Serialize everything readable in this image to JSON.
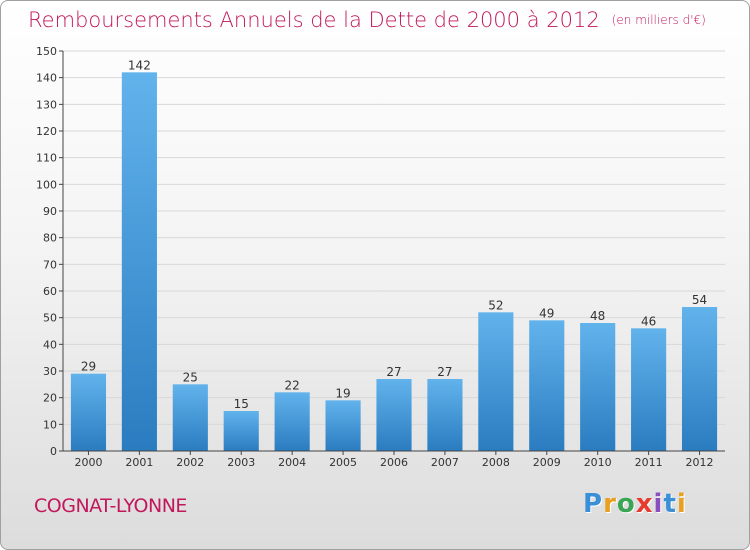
{
  "header": {
    "title": "Remboursements Annuels de la Dette de 2000 à 2012",
    "unit": "(en milliers d'€)"
  },
  "footer": {
    "city": "COGNAT-LYONNE",
    "logo_letters": [
      "P",
      "r",
      "o",
      "x",
      "i",
      "t",
      "i"
    ],
    "logo_colors": [
      "#3a8fd6",
      "#e8a020",
      "#3aa655",
      "#e63b2e",
      "#8a4fbf",
      "#3a8fd6",
      "#e8a020"
    ]
  },
  "colors": {
    "title": "#c2185b",
    "bar_top": "#62b3ec",
    "bar_bottom": "#2a7cc0",
    "axis": "#444444",
    "grid": "#d8d8d8"
  },
  "chart_data": {
    "type": "bar",
    "title": "Remboursements Annuels de la Dette de 2000 à 2012",
    "categories": [
      "2000",
      "2001",
      "2002",
      "2003",
      "2004",
      "2005",
      "2006",
      "2007",
      "2008",
      "2009",
      "2010",
      "2011",
      "2012"
    ],
    "values": [
      29,
      142,
      25,
      15,
      22,
      19,
      27,
      27,
      52,
      49,
      48,
      46,
      54
    ],
    "ylim": [
      0,
      150
    ],
    "yticks": [
      0,
      10,
      20,
      30,
      40,
      50,
      60,
      70,
      80,
      90,
      100,
      110,
      120,
      130,
      140,
      150
    ],
    "grid": true,
    "data_labels": true
  }
}
